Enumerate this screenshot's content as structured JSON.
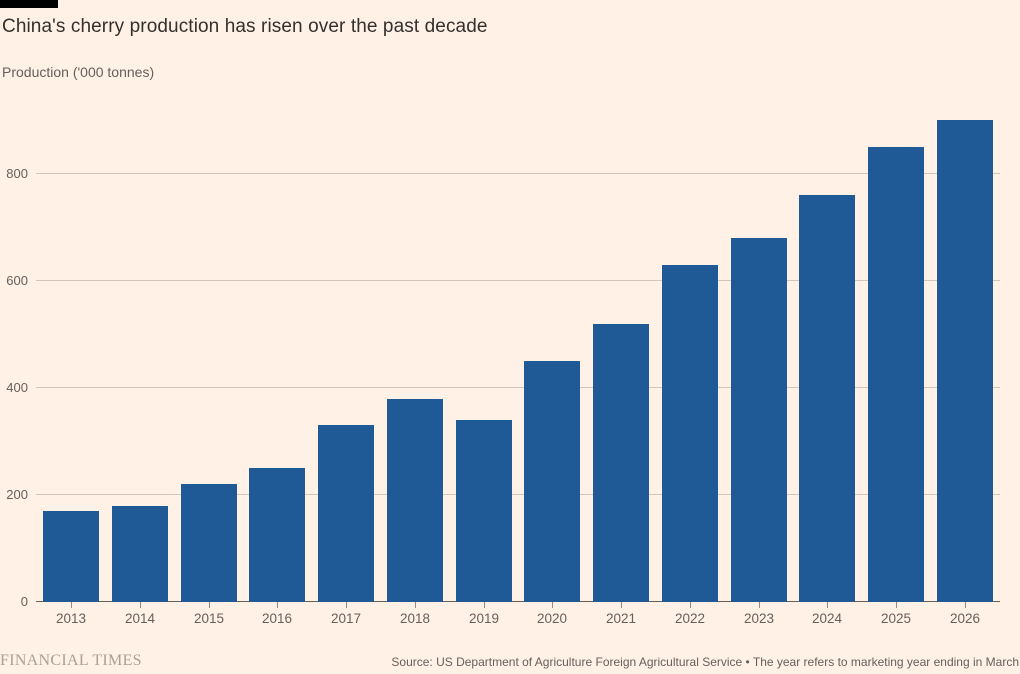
{
  "header": {
    "title": "China's cherry production has risen over the past decade",
    "subtitle": "Production ('000 tonnes)"
  },
  "chart_data": {
    "type": "bar",
    "title": "China's cherry production has risen over the past decade",
    "ylabel": "Production ('000 tonnes)",
    "xlabel": "",
    "categories": [
      "2013",
      "2014",
      "2015",
      "2016",
      "2017",
      "2018",
      "2019",
      "2020",
      "2021",
      "2022",
      "2023",
      "2024",
      "2025",
      "2026"
    ],
    "values": [
      170,
      180,
      220,
      250,
      330,
      380,
      340,
      450,
      520,
      630,
      680,
      760,
      850,
      900
    ],
    "ylim": [
      0,
      950
    ],
    "yticks": [
      0,
      200,
      400,
      600,
      800
    ],
    "grid": true,
    "legend": "none",
    "bar_color": "#1F5A96"
  },
  "footer": {
    "brand": "FINANCIAL TIMES",
    "source": "Source: US Department of Agriculture Foreign Agricultural Service • The year refers to marketing year ending in March"
  },
  "colors": {
    "background": "#FFF1E5",
    "bar": "#1F5A96",
    "title_text": "#33302E",
    "secondary_text": "#66605C",
    "gridline": "#D0C6BA",
    "axis_line": "#66605C",
    "brand_text": "#A9A096",
    "top_rule": "#000000"
  }
}
